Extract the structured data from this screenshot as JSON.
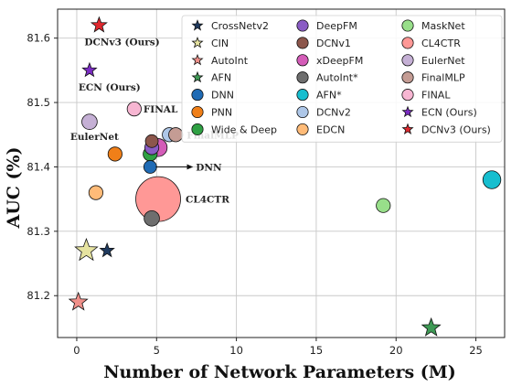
{
  "chart_data": {
    "type": "scatter",
    "title": "",
    "xlabel": "Number of Network Parameters (M)",
    "ylabel": "AUC (%)",
    "xlim": [
      -1.2,
      26.8
    ],
    "ylim": [
      81.135,
      81.645
    ],
    "xticks": [
      0,
      5,
      10,
      15,
      20,
      25
    ],
    "yticks": [
      81.2,
      81.3,
      81.4,
      81.5,
      81.6
    ],
    "ytick_labels": [
      "81.2",
      "81.3",
      "81.4",
      "81.5",
      "81.6"
    ],
    "grid": true,
    "legend_position": "top-right",
    "legend_columns": 3,
    "series": [
      {
        "name": "CrossNetv2",
        "marker": "star",
        "color": "#1f3a5f",
        "points": [
          {
            "x": 1.9,
            "y": 81.27,
            "size": 1
          }
        ]
      },
      {
        "name": "CIN",
        "marker": "star",
        "color": "#e6e3a0",
        "points": [
          {
            "x": 0.6,
            "y": 81.27,
            "size": 1.6
          }
        ]
      },
      {
        "name": "AutoInt",
        "marker": "star",
        "color": "#f0908a",
        "points": [
          {
            "x": 0.1,
            "y": 81.19,
            "size": 1.3
          }
        ]
      },
      {
        "name": "AFN",
        "marker": "star",
        "color": "#3e9a55",
        "points": [
          {
            "x": 22.2,
            "y": 81.15,
            "size": 1.3
          }
        ]
      },
      {
        "name": "DNN",
        "marker": "circle",
        "color": "#1f6bb5",
        "points": [
          {
            "x": 4.6,
            "y": 81.4,
            "size": 1
          }
        ]
      },
      {
        "name": "PNN",
        "marker": "circle",
        "color": "#f07f18",
        "points": [
          {
            "x": 2.4,
            "y": 81.42,
            "size": 1.1
          }
        ]
      },
      {
        "name": "Wide & Deep",
        "marker": "circle",
        "color": "#2fa043",
        "points": [
          {
            "x": 4.6,
            "y": 81.42,
            "size": 1.1
          }
        ]
      },
      {
        "name": "DeepFM",
        "marker": "circle",
        "color": "#8a5cc4",
        "points": [
          {
            "x": 4.7,
            "y": 81.43,
            "size": 1.1
          }
        ]
      },
      {
        "name": "DCNv1",
        "marker": "circle",
        "color": "#8c564b",
        "points": [
          {
            "x": 4.7,
            "y": 81.44,
            "size": 1
          }
        ]
      },
      {
        "name": "xDeepFM",
        "marker": "circle",
        "color": "#d45cb8",
        "points": [
          {
            "x": 5.1,
            "y": 81.43,
            "size": 1.4
          }
        ]
      },
      {
        "name": "AutoInt*",
        "marker": "circle",
        "color": "#6e6e6e",
        "points": [
          {
            "x": 4.7,
            "y": 81.32,
            "size": 1.2
          }
        ]
      },
      {
        "name": "AFN*",
        "marker": "circle",
        "color": "#17becf",
        "points": [
          {
            "x": 26.0,
            "y": 81.38,
            "size": 1.4
          }
        ]
      },
      {
        "name": "DCNv2",
        "marker": "circle",
        "color": "#aec7e8",
        "points": [
          {
            "x": 5.8,
            "y": 81.45,
            "size": 1.1
          }
        ]
      },
      {
        "name": "EDCN",
        "marker": "circle",
        "color": "#ffbb78",
        "points": [
          {
            "x": 1.2,
            "y": 81.36,
            "size": 1.1
          }
        ]
      },
      {
        "name": "MaskNet",
        "marker": "circle",
        "color": "#98df8a",
        "points": [
          {
            "x": 19.2,
            "y": 81.34,
            "size": 1.1
          }
        ]
      },
      {
        "name": "CL4CTR",
        "marker": "circle",
        "color": "#ff9896",
        "points": [
          {
            "x": 5.1,
            "y": 81.35,
            "size": 3.5
          }
        ]
      },
      {
        "name": "EulerNet",
        "marker": "circle",
        "color": "#c5b0d5",
        "points": [
          {
            "x": 0.8,
            "y": 81.47,
            "size": 1.2
          }
        ]
      },
      {
        "name": "FinalMLP",
        "marker": "circle",
        "color": "#c49c94",
        "points": [
          {
            "x": 6.2,
            "y": 81.45,
            "size": 1.1
          }
        ]
      },
      {
        "name": "FINAL",
        "marker": "circle",
        "color": "#f7b6d2",
        "points": [
          {
            "x": 3.6,
            "y": 81.49,
            "size": 1.1
          }
        ]
      },
      {
        "name": "ECN (Ours)",
        "marker": "star",
        "color": "#7b2cc4",
        "points": [
          {
            "x": 0.8,
            "y": 81.55,
            "size": 1
          }
        ]
      },
      {
        "name": "DCNv3 (Ours)",
        "marker": "star",
        "color": "#e0282e",
        "points": [
          {
            "x": 1.4,
            "y": 81.62,
            "size": 1.1
          }
        ]
      }
    ],
    "annotations": [
      {
        "text": "DCNv3 (Ours)",
        "x": 1.4,
        "y": 81.62,
        "color": "#e02020"
      },
      {
        "text": "ECN (Ours)",
        "x": 0.8,
        "y": 81.55,
        "color": "#e02020"
      },
      {
        "text": "FINAL",
        "x": 3.6,
        "y": 81.49,
        "color": "#222222"
      },
      {
        "text": "EulerNet",
        "x": 0.8,
        "y": 81.47,
        "color": "#222222"
      },
      {
        "text": "FinalMLP",
        "x": 6.2,
        "y": 81.45,
        "color": "#222222"
      },
      {
        "text": "DNN",
        "x": 4.6,
        "y": 81.4,
        "color": "#222222",
        "arrow": true
      },
      {
        "text": "CL4CTR",
        "x": 5.1,
        "y": 81.35,
        "color": "#222222"
      }
    ]
  }
}
